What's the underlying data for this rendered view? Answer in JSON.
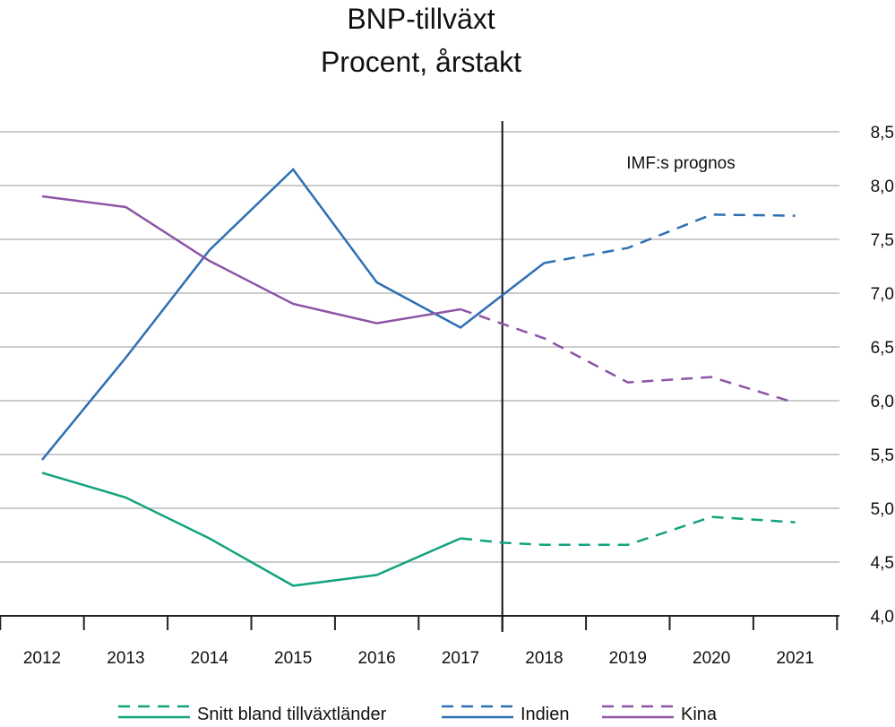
{
  "chart_data": {
    "type": "line",
    "title": "BNP-tillväxt",
    "subtitle": "Procent, årstakt",
    "categories": [
      "2012",
      "2013",
      "2014",
      "2015",
      "2016",
      "2017",
      "2018",
      "2019",
      "2020",
      "2021"
    ],
    "ylim": [
      4.0,
      8.5
    ],
    "yticks": [
      "4,0",
      "4,5",
      "5,0",
      "5,5",
      "6,0",
      "6,5",
      "7,0",
      "7,5",
      "8,0",
      "8,5"
    ],
    "grid": true,
    "y_axis_side": "right",
    "annotation": "IMF:s prognos",
    "forecast_start": "2017/2018",
    "series": [
      {
        "name": "Snitt bland tillväxtländer",
        "color": "#12a37f",
        "values": [
          5.33,
          5.1,
          4.72,
          4.28,
          4.38,
          4.72,
          4.68,
          4.66,
          4.66,
          4.92,
          4.87
        ],
        "x": [
          2012,
          2013,
          2014,
          2015,
          2016,
          2017,
          2017.5,
          2018,
          2019,
          2020,
          2021
        ],
        "dashed_from": 2017
      },
      {
        "name": "Indien",
        "color": "#2e6fb3",
        "values": [
          5.45,
          6.4,
          7.4,
          8.15,
          7.1,
          6.68,
          7.28,
          7.42,
          7.73,
          7.72
        ],
        "x": [
          2012,
          2013,
          2014,
          2015,
          2016,
          2017,
          2018,
          2019,
          2020,
          2021
        ],
        "dashed_from": 2018
      },
      {
        "name": "Kina",
        "color": "#8e55a6",
        "values": [
          7.9,
          7.8,
          7.3,
          6.9,
          6.72,
          6.85,
          6.58,
          6.17,
          6.22,
          5.98
        ],
        "x": [
          2012,
          2013,
          2014,
          2015,
          2016,
          2017,
          2018,
          2019,
          2020,
          2021
        ],
        "dashed_from": 2017
      }
    ],
    "legend": {
      "placement": "bottom"
    }
  }
}
